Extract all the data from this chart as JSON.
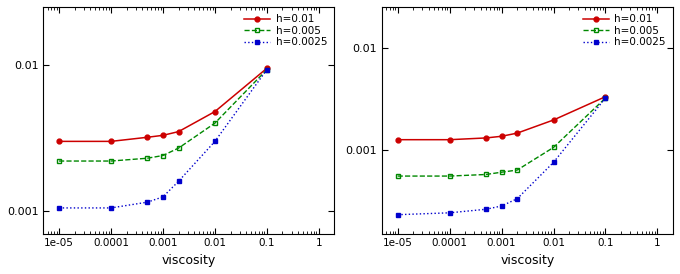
{
  "viscosity": [
    1e-05,
    0.0001,
    0.0005,
    0.001,
    0.002,
    0.01,
    0.1
  ],
  "left_plot": {
    "h001": [
      0.003,
      0.003,
      0.0032,
      0.0033,
      0.0035,
      0.0048,
      0.0095
    ],
    "h0005": [
      0.0022,
      0.0022,
      0.0023,
      0.0024,
      0.0027,
      0.004,
      0.0093
    ],
    "h00025": [
      0.00105,
      0.00105,
      0.00115,
      0.00125,
      0.0016,
      0.003,
      0.0093
    ],
    "ylim": [
      0.0007,
      0.025
    ],
    "yticks": [
      0.001,
      0.01
    ]
  },
  "right_plot": {
    "h001": [
      0.00125,
      0.00125,
      0.0013,
      0.00135,
      0.00145,
      0.00195,
      0.0033
    ],
    "h0005": [
      0.00055,
      0.00055,
      0.00057,
      0.0006,
      0.00063,
      0.00105,
      0.0032
    ],
    "h00025": [
      0.00023,
      0.00024,
      0.00026,
      0.00028,
      0.00033,
      0.00075,
      0.0032
    ],
    "ylim": [
      0.00015,
      0.025
    ],
    "yticks": [
      0.001,
      0.01
    ]
  },
  "colors": {
    "h001": "#cc0000",
    "h0005": "#008800",
    "h00025": "#0000cc"
  },
  "legend_labels": [
    "h=0.01",
    "h=0.005",
    "h=0.0025"
  ],
  "xlabel": "viscosity",
  "background": "#ffffff",
  "figsize": [
    6.8,
    2.74
  ],
  "dpi": 100
}
